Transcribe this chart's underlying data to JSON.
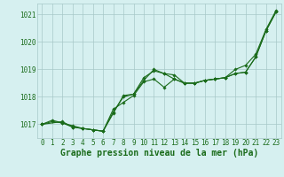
{
  "title": "Graphe pression niveau de la mer (hPa)",
  "xlim": [
    -0.5,
    23.5
  ],
  "ylim": [
    1016.5,
    1021.4
  ],
  "yticks": [
    1017,
    1018,
    1019,
    1020,
    1021
  ],
  "xticks": [
    0,
    1,
    2,
    3,
    4,
    5,
    6,
    7,
    8,
    9,
    10,
    11,
    12,
    13,
    14,
    15,
    16,
    17,
    18,
    19,
    20,
    21,
    22,
    23
  ],
  "line1_x": [
    0,
    1,
    2,
    3,
    4,
    5,
    6,
    7,
    8,
    9,
    10,
    11,
    12,
    13,
    14,
    15,
    16,
    17,
    18,
    19,
    20,
    21,
    22,
    23
  ],
  "line1_y": [
    1017.0,
    1017.15,
    1017.05,
    1016.9,
    1016.85,
    1016.8,
    1016.75,
    1017.55,
    1017.8,
    1018.05,
    1018.55,
    1018.65,
    1018.35,
    1018.65,
    1018.5,
    1018.5,
    1018.6,
    1018.65,
    1018.7,
    1018.85,
    1018.9,
    1019.45,
    1020.4,
    1021.1
  ],
  "line2_x": [
    0,
    1,
    2,
    3,
    4,
    5,
    6,
    7,
    8,
    9,
    10,
    11,
    12,
    13,
    14,
    15,
    16,
    17,
    18,
    19,
    20,
    21,
    22,
    23
  ],
  "line2_y": [
    1017.0,
    1017.1,
    1017.05,
    1016.95,
    1016.85,
    1016.8,
    1016.75,
    1017.45,
    1018.0,
    1018.1,
    1018.7,
    1018.95,
    1018.85,
    1018.8,
    1018.5,
    1018.5,
    1018.6,
    1018.65,
    1018.7,
    1018.85,
    1018.9,
    1019.45,
    1020.4,
    1021.1
  ],
  "line3_x": [
    0,
    2,
    3,
    4,
    5,
    6,
    7,
    8,
    9,
    10,
    11,
    12,
    13,
    14,
    15,
    16,
    17,
    18,
    19,
    20,
    21,
    22,
    23
  ],
  "line3_y": [
    1017.0,
    1017.1,
    1016.9,
    1016.85,
    1016.8,
    1016.75,
    1017.4,
    1018.05,
    1018.1,
    1018.6,
    1019.0,
    1018.85,
    1018.65,
    1018.5,
    1018.5,
    1018.6,
    1018.65,
    1018.7,
    1019.0,
    1019.15,
    1019.55,
    1020.45,
    1021.15
  ],
  "line_color": "#1a6b1a",
  "marker_color": "#1a6b1a",
  "bg_color": "#d6f0f0",
  "grid_color": "#a8c8c8",
  "title_color": "#1a6b1a",
  "title_fontsize": 7.0,
  "tick_fontsize": 5.5
}
